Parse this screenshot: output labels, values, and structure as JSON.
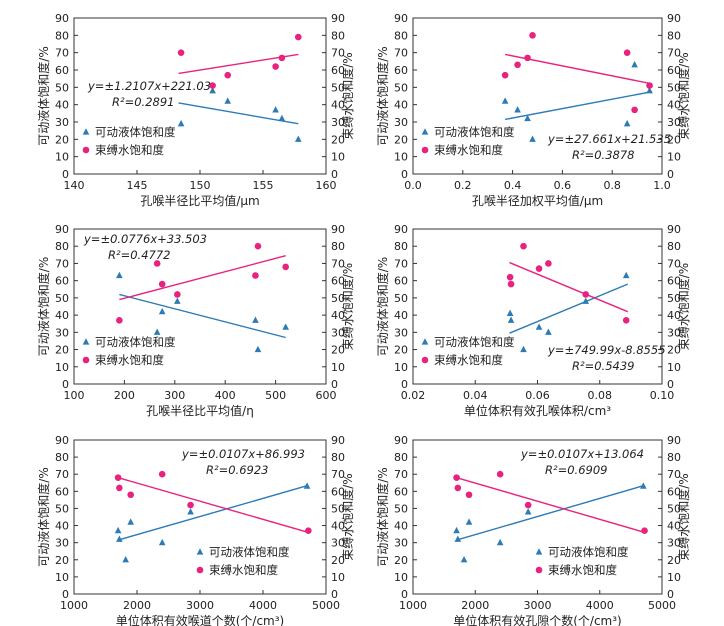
{
  "colors": {
    "movable": "#2c7bb6",
    "bound": "#e8227e",
    "axis": "#333333"
  },
  "legend": {
    "movable": "可动液体饱和度",
    "bound": "束缚水饱和度"
  },
  "chart_data": [
    {
      "type": "scatter",
      "xlabel": "孔喉半径比平均值/μm",
      "ylabel_left": "可动液体饱和度/%",
      "ylabel_right": "束缚水饱和度/%",
      "xlim": [
        140,
        160
      ],
      "xticks": [
        "140",
        "145",
        "150",
        "155",
        "160"
      ],
      "ylim": [
        0,
        90
      ],
      "yticks": [
        "0",
        "10",
        "20",
        "30",
        "40",
        "50",
        "60",
        "70",
        "80",
        "90"
      ],
      "series": [
        {
          "name": "可动液体饱和度",
          "x": [
            148.5,
            151.0,
            152.2,
            156.0,
            156.5,
            157.8
          ],
          "y": [
            29,
            48,
            42,
            37,
            32,
            20
          ]
        },
        {
          "name": "束缚水饱和度",
          "x": [
            148.5,
            151.0,
            152.2,
            156.0,
            156.5,
            157.8
          ],
          "y": [
            70,
            51,
            57,
            62,
            67,
            79
          ]
        }
      ],
      "fit_lines": [
        {
          "series": "可动液体饱和度",
          "x": [
            148.3,
            157.8
          ],
          "y": [
            41,
            29
          ]
        },
        {
          "series": "束缚水饱和度",
          "x": [
            148.3,
            157.8
          ],
          "y": [
            58,
            69
          ]
        }
      ],
      "equation": "y=±1.2107x+221.03",
      "r2": "R²=0.2891",
      "legend_position": "bottom-left",
      "equation_position": "mid-left"
    },
    {
      "type": "scatter",
      "xlabel": "孔喉半径加权平均值/μm",
      "ylabel_left": "可动液体饱和度/%",
      "ylabel_right": "束缚水饱和度/%",
      "xlim": [
        0,
        1
      ],
      "xticks": [
        "0.0",
        "0.2",
        "0.4",
        "0.6",
        "0.8",
        "1.0"
      ],
      "ylim": [
        0,
        90
      ],
      "yticks": [
        "0",
        "10",
        "20",
        "30",
        "40",
        "50",
        "60",
        "70",
        "80",
        "90"
      ],
      "series": [
        {
          "name": "可动液体饱和度",
          "x": [
            0.37,
            0.42,
            0.46,
            0.48,
            0.86,
            0.89,
            0.95
          ],
          "y": [
            42,
            37,
            32,
            20,
            29,
            63,
            48
          ]
        },
        {
          "name": "束缚水饱和度",
          "x": [
            0.37,
            0.42,
            0.46,
            0.48,
            0.86,
            0.89,
            0.95
          ],
          "y": [
            57,
            63,
            67,
            80,
            70,
            37,
            51
          ]
        }
      ],
      "fit_lines": [
        {
          "series": "可动液体饱和度",
          "x": [
            0.37,
            0.96
          ],
          "y": [
            31.5,
            47.5
          ]
        },
        {
          "series": "束缚水饱和度",
          "x": [
            0.37,
            0.96
          ],
          "y": [
            69,
            52
          ]
        }
      ],
      "equation": "y=±27.661x+21.535",
      "r2": "R²=0.3878",
      "legend_position": "bottom-left",
      "equation_position": "bottom-right"
    },
    {
      "type": "scatter",
      "xlabel": "孔喉半径比平均值/η",
      "ylabel_left": "可动液体饱和度/%",
      "ylabel_right": "束缚水饱和度/%",
      "xlim": [
        100,
        600
      ],
      "xticks": [
        "100",
        "200",
        "300",
        "400",
        "500",
        "600"
      ],
      "ylim": [
        0,
        90
      ],
      "yticks": [
        "0",
        "10",
        "20",
        "30",
        "40",
        "50",
        "60",
        "70",
        "80",
        "90"
      ],
      "series": [
        {
          "name": "可动液体饱和度",
          "x": [
            190,
            265,
            275,
            305,
            460,
            465,
            520
          ],
          "y": [
            63,
            30,
            42,
            48,
            37,
            20,
            33
          ]
        },
        {
          "name": "束缚水饱和度",
          "x": [
            190,
            265,
            275,
            305,
            460,
            465,
            520
          ],
          "y": [
            37,
            70,
            58,
            52,
            63,
            80,
            68
          ]
        }
      ],
      "fit_lines": [
        {
          "series": "可动液体饱和度",
          "x": [
            190,
            520
          ],
          "y": [
            52,
            27
          ]
        },
        {
          "series": "束缚水饱和度",
          "x": [
            190,
            520
          ],
          "y": [
            49,
            74.5
          ]
        }
      ],
      "equation": "y=±0.0776x+33.503",
      "r2": "R²=0.4772",
      "legend_position": "bottom-left",
      "equation_position": "top-left"
    },
    {
      "type": "scatter",
      "xlabel": "单位体积有效孔喉体积/cm³",
      "ylabel_left": "可动液体饱和度/%",
      "ylabel_right": "束缚水饱和度/%",
      "xlim": [
        0.02,
        0.1
      ],
      "xticks": [
        "0.02",
        "0.04",
        "0.06",
        "0.08",
        "0.10"
      ],
      "ylim": [
        0,
        90
      ],
      "yticks": [
        "0",
        "10",
        "20",
        "30",
        "40",
        "50",
        "60",
        "70",
        "80",
        "90"
      ],
      "series": [
        {
          "name": "可动液体饱和度",
          "x": [
            0.0512,
            0.0515,
            0.0555,
            0.0605,
            0.0635,
            0.0755,
            0.0885
          ],
          "y": [
            41,
            37,
            20,
            33,
            30,
            48,
            63
          ]
        },
        {
          "name": "束缚水饱和度",
          "x": [
            0.0512,
            0.0515,
            0.0555,
            0.0605,
            0.0635,
            0.0755,
            0.0885
          ],
          "y": [
            62,
            58,
            80,
            67,
            70,
            52,
            37
          ]
        }
      ],
      "fit_lines": [
        {
          "series": "可动液体饱和度",
          "x": [
            0.051,
            0.089
          ],
          "y": [
            29.5,
            58
          ]
        },
        {
          "series": "束缚水饱和度",
          "x": [
            0.051,
            0.089
          ],
          "y": [
            70.5,
            42
          ]
        }
      ],
      "equation": "y=±749.99x-8.8555",
      "r2": "R²=0.5439",
      "legend_position": "bottom-left",
      "equation_position": "bottom-right"
    },
    {
      "type": "scatter",
      "xlabel": "单位体积有效喉道个数(个/cm³)",
      "ylabel_left": "可动液体饱和度/%",
      "ylabel_right": "束缚水饱和度/%",
      "xlim": [
        1000,
        5000
      ],
      "xticks": [
        "1000",
        "2000",
        "3000",
        "4000",
        "5000"
      ],
      "ylim": [
        0,
        90
      ],
      "yticks": [
        "0",
        "10",
        "20",
        "30",
        "40",
        "50",
        "60",
        "70",
        "80",
        "90"
      ],
      "series": [
        {
          "name": "可动液体饱和度",
          "x": [
            1700,
            1720,
            1820,
            1900,
            2400,
            2850,
            4700
          ],
          "y": [
            37,
            32,
            20,
            42,
            30,
            48,
            63
          ]
        },
        {
          "name": "束缚水饱和度",
          "x": [
            1700,
            1720,
            1900,
            2400,
            2850,
            4720
          ],
          "y": [
            68,
            62,
            58,
            70,
            52,
            37
          ]
        }
      ],
      "fit_lines": [
        {
          "series": "可动液体饱和度",
          "x": [
            1700,
            4720
          ],
          "y": [
            31.5,
            63.5
          ]
        },
        {
          "series": "束缚水饱和度",
          "x": [
            1700,
            4720
          ],
          "y": [
            68,
            36
          ]
        }
      ],
      "equation": "y=±0.0107x+86.993",
      "r2": "R²=0.6923",
      "legend_position": "bottom-right",
      "equation_position": "top-right"
    },
    {
      "type": "scatter",
      "xlabel": "单位体积有效孔隙个数(个/cm³)",
      "ylabel_left": "可动液体饱和度/%",
      "ylabel_right": "束缚水饱和度/%",
      "xlim": [
        1000,
        5000
      ],
      "xticks": [
        "1000",
        "2000",
        "3000",
        "4000",
        "5000"
      ],
      "ylim": [
        0,
        90
      ],
      "yticks": [
        "0",
        "10",
        "20",
        "30",
        "40",
        "50",
        "60",
        "70",
        "80",
        "90"
      ],
      "series": [
        {
          "name": "可动液体饱和度",
          "x": [
            1700,
            1720,
            1820,
            1900,
            2400,
            2850,
            4700
          ],
          "y": [
            37,
            32,
            20,
            42,
            30,
            48,
            63
          ]
        },
        {
          "name": "束缚水饱和度",
          "x": [
            1700,
            1720,
            1900,
            2400,
            2850,
            4720
          ],
          "y": [
            68,
            62,
            58,
            70,
            52,
            37
          ]
        }
      ],
      "fit_lines": [
        {
          "series": "可动液体饱和度",
          "x": [
            1700,
            4720
          ],
          "y": [
            31.5,
            63.5
          ]
        },
        {
          "series": "束缚水饱和度",
          "x": [
            1700,
            4720
          ],
          "y": [
            68,
            36
          ]
        }
      ],
      "equation": "y=±0.0107x+13.064",
      "r2": "R²=0.6909",
      "legend_position": "bottom-right",
      "equation_position": "top-right"
    }
  ]
}
